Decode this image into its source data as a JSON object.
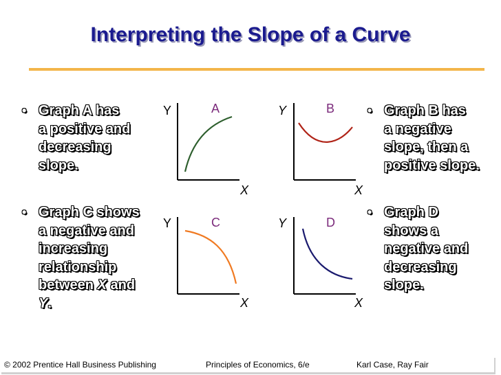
{
  "slide": {
    "title": "Interpreting the Slope of a Curve",
    "bullets": [
      {
        "id": "a",
        "lines": [
          "Graph A has",
          "a positive and",
          "decreasing",
          "slope."
        ]
      },
      {
        "id": "c",
        "lines_rich": [
          [
            "Graph C shows"
          ],
          [
            "a negative and"
          ],
          [
            "increasing"
          ],
          [
            "relationship"
          ],
          [
            "between ",
            "X",
            " and"
          ],
          [
            "Y",
            "."
          ]
        ]
      },
      {
        "id": "b",
        "lines": [
          "Graph B has",
          "a negative",
          "slope, then a",
          "positive slope."
        ]
      },
      {
        "id": "d",
        "lines": [
          "Graph D",
          "shows a",
          "negative and",
          "decreasing",
          "slope."
        ]
      }
    ],
    "graphs": [
      {
        "id": "a",
        "label": "A",
        "y_axis": "Y",
        "x_axis": "X",
        "color": "#2e5f2e",
        "label_color": "#7b2a7b",
        "shape": "concave-increasing"
      },
      {
        "id": "b",
        "label": "B",
        "y_axis": "Y",
        "x_axis": "X",
        "color": "#b02418",
        "label_color": "#7b2a7b",
        "shape": "u-shaped"
      },
      {
        "id": "c",
        "label": "C",
        "y_axis": "Y",
        "x_axis": "X",
        "color": "#f07a22",
        "label_color": "#7b2a7b",
        "shape": "concave-decreasing"
      },
      {
        "id": "d",
        "label": "D",
        "y_axis": "Y",
        "x_axis": "X",
        "color": "#1a1a6e",
        "label_color": "#7b2a7b",
        "shape": "convex-decreasing"
      }
    ]
  },
  "footer": {
    "copyright": "© 2002 Prentice Hall Business Publishing",
    "book": "Principles of Economics, 6/e",
    "authors": "Karl Case, Ray Fair"
  },
  "colors": {
    "title": "#1b1b8f",
    "rule": "#f3b54a"
  }
}
